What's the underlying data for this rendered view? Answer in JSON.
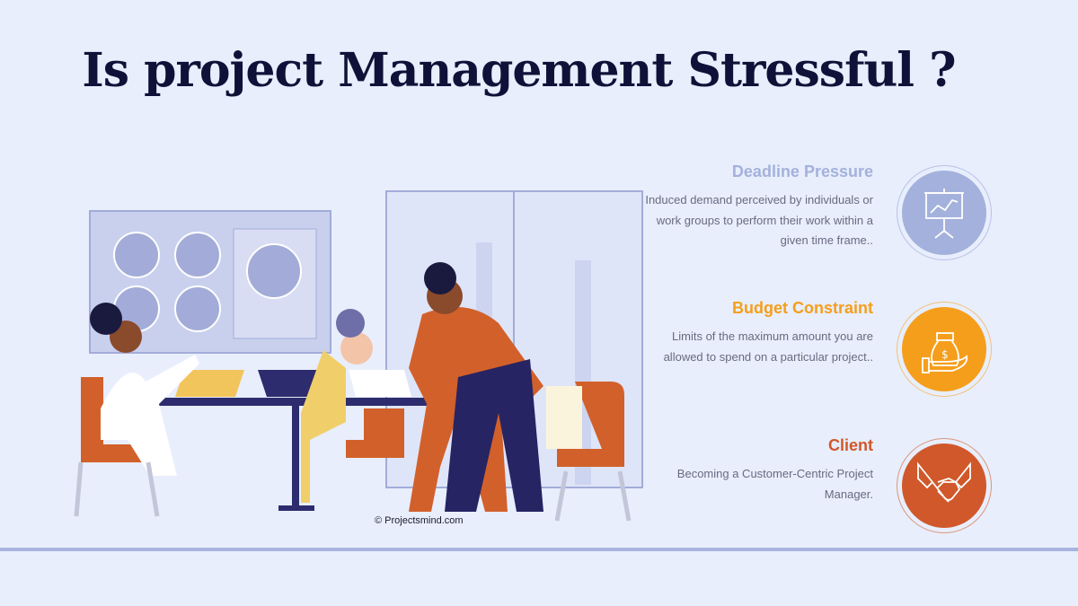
{
  "title": "Is project Management Stressful ?",
  "credit": "© Projectsmind.com",
  "items": [
    {
      "heading": "Deadline Pressure",
      "text": "Induced demand perceived by individuals or work groups to perform their work within a given time frame..",
      "color": "#a3b1dc",
      "icon": "presentation-chart-icon"
    },
    {
      "heading": "Budget Constraint",
      "text": "Limits of the maximum amount you are allowed to spend on a particular project..",
      "color": "#f59e1b",
      "icon": "money-bag-hand-icon"
    },
    {
      "heading": "Client",
      "text": "Becoming a Customer-Centric Project Manager.",
      "color": "#d0582a",
      "icon": "handshake-icon"
    }
  ]
}
